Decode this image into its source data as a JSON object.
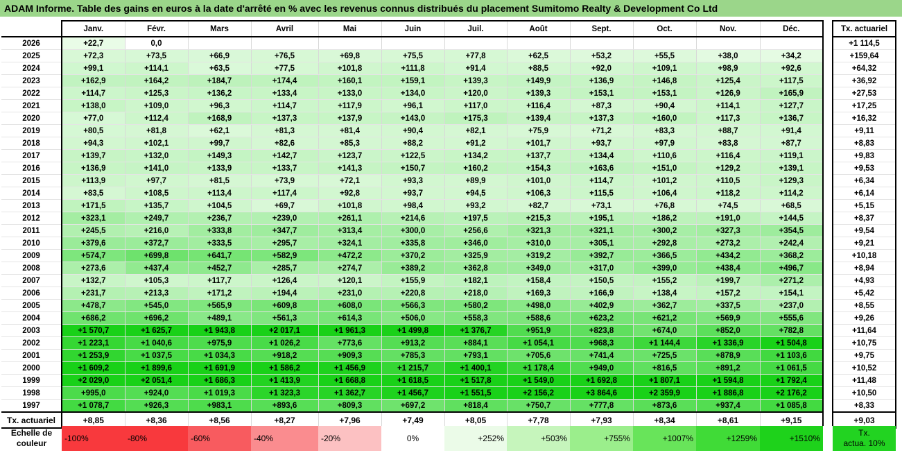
{
  "title": "ADAM Informe. Table des gains en euros à la date d'arrêté en % avec les revenus connus distribués du placement Sumitomo Realty & Development Co Ltd",
  "table": {
    "months": [
      "Janv.",
      "Févr.",
      "Mars",
      "Avril",
      "Mai",
      "Juin",
      "Juil.",
      "Août",
      "Sept.",
      "Oct.",
      "Nov.",
      "Déc."
    ],
    "rate_header": "Tx. actuariel",
    "rows": [
      {
        "year": "2026",
        "values": [
          "+22,7",
          "0,0",
          "",
          "",
          "",
          "",
          "",
          "",
          "",
          "",
          "",
          ""
        ],
        "rate": "+1 114,5"
      },
      {
        "year": "2025",
        "values": [
          "+72,3",
          "+73,5",
          "+66,9",
          "+76,5",
          "+69,8",
          "+75,5",
          "+77,8",
          "+62,5",
          "+53,2",
          "+55,5",
          "+38,0",
          "+34,2"
        ],
        "rate": "+159,64"
      },
      {
        "year": "2024",
        "values": [
          "+99,1",
          "+114,1",
          "+63,5",
          "+77,5",
          "+101,8",
          "+111,8",
          "+91,4",
          "+88,5",
          "+92,0",
          "+109,1",
          "+98,9",
          "+92,6"
        ],
        "rate": "+64,32"
      },
      {
        "year": "2023",
        "values": [
          "+162,9",
          "+164,2",
          "+184,7",
          "+174,4",
          "+160,1",
          "+159,1",
          "+139,3",
          "+149,9",
          "+136,9",
          "+146,8",
          "+125,4",
          "+117,5"
        ],
        "rate": "+36,92"
      },
      {
        "year": "2022",
        "values": [
          "+114,7",
          "+125,3",
          "+136,2",
          "+133,4",
          "+133,0",
          "+134,0",
          "+120,0",
          "+139,3",
          "+153,1",
          "+153,1",
          "+126,9",
          "+165,9"
        ],
        "rate": "+27,53"
      },
      {
        "year": "2021",
        "values": [
          "+138,0",
          "+109,0",
          "+96,3",
          "+114,7",
          "+117,9",
          "+96,1",
          "+117,0",
          "+116,4",
          "+87,3",
          "+90,4",
          "+114,1",
          "+127,7"
        ],
        "rate": "+17,25"
      },
      {
        "year": "2020",
        "values": [
          "+77,0",
          "+112,4",
          "+168,9",
          "+137,3",
          "+137,9",
          "+143,0",
          "+175,3",
          "+139,4",
          "+137,3",
          "+160,0",
          "+117,3",
          "+136,7"
        ],
        "rate": "+16,32"
      },
      {
        "year": "2019",
        "values": [
          "+80,5",
          "+81,8",
          "+62,1",
          "+81,3",
          "+81,4",
          "+90,4",
          "+82,1",
          "+75,9",
          "+71,2",
          "+83,3",
          "+88,7",
          "+91,4"
        ],
        "rate": "+9,11"
      },
      {
        "year": "2018",
        "values": [
          "+94,3",
          "+102,1",
          "+99,7",
          "+82,6",
          "+85,3",
          "+88,2",
          "+91,2",
          "+101,7",
          "+93,7",
          "+97,9",
          "+83,8",
          "+87,7"
        ],
        "rate": "+8,83"
      },
      {
        "year": "2017",
        "values": [
          "+139,7",
          "+132,0",
          "+149,3",
          "+142,7",
          "+123,7",
          "+122,5",
          "+134,2",
          "+137,7",
          "+134,4",
          "+110,6",
          "+116,4",
          "+119,1"
        ],
        "rate": "+9,83"
      },
      {
        "year": "2016",
        "values": [
          "+136,9",
          "+141,0",
          "+133,9",
          "+133,7",
          "+141,3",
          "+150,7",
          "+160,2",
          "+154,3",
          "+163,6",
          "+151,0",
          "+129,2",
          "+139,1"
        ],
        "rate": "+9,53"
      },
      {
        "year": "2015",
        "values": [
          "+113,9",
          "+97,7",
          "+81,5",
          "+73,9",
          "+72,1",
          "+93,3",
          "+89,9",
          "+101,0",
          "+114,7",
          "+101,2",
          "+110,5",
          "+129,3"
        ],
        "rate": "+6,34"
      },
      {
        "year": "2014",
        "values": [
          "+83,5",
          "+108,5",
          "+113,4",
          "+117,4",
          "+92,8",
          "+93,7",
          "+94,5",
          "+106,3",
          "+115,5",
          "+106,4",
          "+118,2",
          "+114,2"
        ],
        "rate": "+6,14"
      },
      {
        "year": "2013",
        "values": [
          "+171,5",
          "+135,7",
          "+104,5",
          "+69,7",
          "+101,8",
          "+98,4",
          "+93,2",
          "+82,7",
          "+73,1",
          "+76,8",
          "+74,5",
          "+68,5"
        ],
        "rate": "+5,15"
      },
      {
        "year": "2012",
        "values": [
          "+323,1",
          "+249,7",
          "+236,7",
          "+239,0",
          "+261,1",
          "+214,6",
          "+197,5",
          "+215,3",
          "+195,1",
          "+186,2",
          "+191,0",
          "+144,5"
        ],
        "rate": "+8,37"
      },
      {
        "year": "2011",
        "values": [
          "+245,5",
          "+216,0",
          "+333,8",
          "+347,7",
          "+313,4",
          "+300,0",
          "+256,6",
          "+321,3",
          "+321,1",
          "+300,2",
          "+327,3",
          "+354,5"
        ],
        "rate": "+9,54"
      },
      {
        "year": "2010",
        "values": [
          "+379,6",
          "+372,7",
          "+333,5",
          "+295,7",
          "+324,1",
          "+335,8",
          "+346,0",
          "+310,0",
          "+305,1",
          "+292,8",
          "+273,2",
          "+242,4"
        ],
        "rate": "+9,21"
      },
      {
        "year": "2009",
        "values": [
          "+574,7",
          "+699,8",
          "+641,7",
          "+582,9",
          "+472,2",
          "+370,2",
          "+325,9",
          "+319,2",
          "+392,7",
          "+366,5",
          "+434,2",
          "+368,2"
        ],
        "rate": "+10,18"
      },
      {
        "year": "2008",
        "values": [
          "+273,6",
          "+437,4",
          "+452,7",
          "+285,7",
          "+274,7",
          "+389,2",
          "+362,8",
          "+349,0",
          "+317,0",
          "+399,0",
          "+438,4",
          "+496,7"
        ],
        "rate": "+8,94"
      },
      {
        "year": "2007",
        "values": [
          "+132,7",
          "+105,3",
          "+117,7",
          "+126,4",
          "+120,1",
          "+155,9",
          "+182,1",
          "+158,4",
          "+150,5",
          "+155,2",
          "+199,7",
          "+271,2"
        ],
        "rate": "+4,93"
      },
      {
        "year": "2006",
        "values": [
          "+231,7",
          "+213,3",
          "+171,2",
          "+194,4",
          "+231,0",
          "+220,8",
          "+218,0",
          "+169,3",
          "+166,9",
          "+138,4",
          "+157,2",
          "+154,1"
        ],
        "rate": "+5,42"
      },
      {
        "year": "2005",
        "values": [
          "+478,7",
          "+545,0",
          "+565,9",
          "+609,8",
          "+608,0",
          "+566,3",
          "+580,2",
          "+498,0",
          "+402,9",
          "+362,7",
          "+337,5",
          "+237,0"
        ],
        "rate": "+8,55"
      },
      {
        "year": "2004",
        "values": [
          "+686,2",
          "+696,2",
          "+489,1",
          "+561,3",
          "+614,3",
          "+506,0",
          "+558,3",
          "+588,6",
          "+623,2",
          "+621,2",
          "+569,9",
          "+555,6"
        ],
        "rate": "+9,26"
      },
      {
        "year": "2003",
        "values": [
          "+1 570,7",
          "+1 625,7",
          "+1 943,8",
          "+2 017,1",
          "+1 961,3",
          "+1 499,8",
          "+1 376,7",
          "+951,9",
          "+823,8",
          "+674,0",
          "+852,0",
          "+782,8"
        ],
        "rate": "+11,64"
      },
      {
        "year": "2002",
        "values": [
          "+1 223,1",
          "+1 040,6",
          "+975,9",
          "+1 026,2",
          "+773,6",
          "+913,2",
          "+884,1",
          "+1 054,1",
          "+968,3",
          "+1 144,4",
          "+1 336,9",
          "+1 504,8"
        ],
        "rate": "+10,75"
      },
      {
        "year": "2001",
        "values": [
          "+1 253,9",
          "+1 037,5",
          "+1 034,3",
          "+918,2",
          "+909,3",
          "+785,3",
          "+793,1",
          "+705,6",
          "+741,4",
          "+725,5",
          "+878,9",
          "+1 103,6"
        ],
        "rate": "+9,75"
      },
      {
        "year": "2000",
        "values": [
          "+1 609,2",
          "+1 899,6",
          "+1 691,9",
          "+1 586,2",
          "+1 456,9",
          "+1 215,7",
          "+1 400,1",
          "+1 178,4",
          "+949,0",
          "+816,5",
          "+891,2",
          "+1 061,5"
        ],
        "rate": "+10,52"
      },
      {
        "year": "1999",
        "values": [
          "+2 029,0",
          "+2 051,4",
          "+1 686,3",
          "+1 413,9",
          "+1 668,8",
          "+1 618,5",
          "+1 517,8",
          "+1 549,0",
          "+1 692,8",
          "+1 807,1",
          "+1 594,8",
          "+1 792,4"
        ],
        "rate": "+11,48"
      },
      {
        "year": "1998",
        "values": [
          "+995,0",
          "+924,0",
          "+1 019,3",
          "+1 323,3",
          "+1 362,7",
          "+1 456,7",
          "+1 551,5",
          "+2 156,2",
          "+3 864,6",
          "+2 359,9",
          "+1 886,8",
          "+2 176,2"
        ],
        "rate": "+10,50"
      },
      {
        "year": "1997",
        "values": [
          "+1 078,7",
          "+926,3",
          "+983,1",
          "+893,6",
          "+809,3",
          "+697,2",
          "+818,4",
          "+750,7",
          "+777,8",
          "+873,6",
          "+937,4",
          "+1 085,8"
        ],
        "rate": "+8,33"
      }
    ],
    "footer": {
      "label": "Tx. actuariel",
      "values": [
        "+8,85",
        "+8,36",
        "+8,56",
        "+8,27",
        "+7,96",
        "+7,49",
        "+8,05",
        "+7,78",
        "+7,93",
        "+8,34",
        "+8,61",
        "+9,15"
      ],
      "rate": "+9,03"
    }
  },
  "scale": {
    "label_line1": "Echelle de",
    "label_line2": "couleur",
    "steps": [
      {
        "text": "-100%",
        "color": "#f8393d"
      },
      {
        "text": "-80%",
        "color": "#f8393d"
      },
      {
        "text": "-60%",
        "color": "#f85b5f"
      },
      {
        "text": "-40%",
        "color": "#fa8c8f"
      },
      {
        "text": "-20%",
        "color": "#fcc1c2"
      },
      {
        "text": "0%",
        "color": "#ffffff"
      },
      {
        "text": "+252%",
        "color": "#ebfbe8"
      },
      {
        "text": "+503%",
        "color": "#c6f5bc"
      },
      {
        "text": "+755%",
        "color": "#9bee8c"
      },
      {
        "text": "+1007%",
        "color": "#68e45a"
      },
      {
        "text": "+1259%",
        "color": "#40db37"
      },
      {
        "text": "+1510%",
        "color": "#1ed21b"
      }
    ],
    "note_line1": "Tx.",
    "note_line2": "actua. 10%"
  },
  "colors": {
    "title_bg": "#9bd68a",
    "max_green": "#19d118",
    "note_bg": "#22d321"
  }
}
